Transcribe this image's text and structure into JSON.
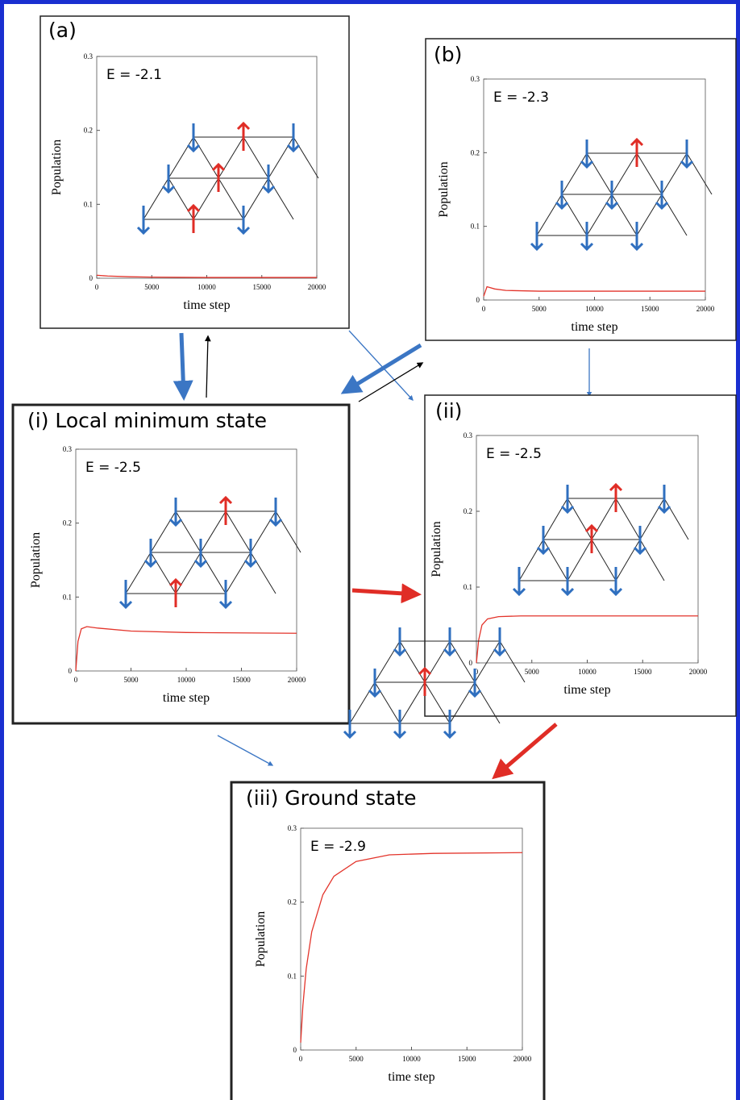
{
  "chart_data": [
    {
      "type": "line",
      "title": "(a)",
      "annotation": "E = -2.1",
      "xlabel": "time step",
      "ylabel": "Population",
      "x": [
        0,
        1000,
        3000,
        5000,
        10000,
        15000,
        20000
      ],
      "series": [
        {
          "color": "#e3342b",
          "values": [
            0.004,
            0.003,
            0.002,
            0.0015,
            0.001,
            0.001,
            0.001
          ]
        }
      ],
      "xlim": [
        0,
        20000
      ],
      "xticks": [
        0,
        5000,
        10000,
        15000,
        20000
      ],
      "ylim": [
        0,
        0.3
      ],
      "yticks": [
        0,
        0.1,
        0.2,
        0.3
      ]
    },
    {
      "type": "line",
      "title": "(b)",
      "annotation": "E = -2.3",
      "xlabel": "time step",
      "ylabel": "Population",
      "x": [
        0,
        300,
        1000,
        2000,
        5000,
        10000,
        20000
      ],
      "series": [
        {
          "color": "#e3342b",
          "values": [
            0.005,
            0.018,
            0.015,
            0.013,
            0.012,
            0.012,
            0.012
          ]
        }
      ],
      "xlim": [
        0,
        20000
      ],
      "xticks": [
        0,
        5000,
        10000,
        15000,
        20000
      ],
      "ylim": [
        0,
        0.3
      ],
      "yticks": [
        0,
        0.1,
        0.2,
        0.3
      ]
    },
    {
      "type": "line",
      "title": "(i) Local minimum state",
      "annotation": "E = -2.5",
      "xlabel": "time step",
      "ylabel": "Population",
      "x": [
        0,
        200,
        500,
        1000,
        2000,
        5000,
        10000,
        20000
      ],
      "series": [
        {
          "color": "#e3342b",
          "values": [
            0,
            0.04,
            0.057,
            0.06,
            0.058,
            0.054,
            0.052,
            0.051
          ]
        }
      ],
      "xlim": [
        0,
        20000
      ],
      "xticks": [
        0,
        5000,
        10000,
        15000,
        20000
      ],
      "ylim": [
        0,
        0.3
      ],
      "yticks": [
        0,
        0.1,
        0.2,
        0.3
      ]
    },
    {
      "type": "line",
      "title": "(ii)",
      "annotation": "E = -2.5",
      "xlabel": "time step",
      "ylabel": "Population",
      "x": [
        0,
        200,
        500,
        1000,
        2000,
        4000,
        20000
      ],
      "series": [
        {
          "color": "#e3342b",
          "values": [
            0,
            0.03,
            0.05,
            0.058,
            0.061,
            0.062,
            0.062
          ]
        }
      ],
      "xlim": [
        0,
        20000
      ],
      "xticks": [
        0,
        5000,
        10000,
        15000,
        20000
      ],
      "ylim": [
        0,
        0.3
      ],
      "yticks": [
        0,
        0.1,
        0.2,
        0.3
      ]
    },
    {
      "type": "line",
      "title": "(iii) Ground state",
      "annotation": "E = -2.9",
      "xlabel": "time step",
      "ylabel": "Population",
      "x": [
        0,
        200,
        500,
        1000,
        2000,
        3000,
        5000,
        8000,
        12000,
        20000
      ],
      "series": [
        {
          "color": "#e3342b",
          "values": [
            0.01,
            0.06,
            0.11,
            0.16,
            0.21,
            0.235,
            0.255,
            0.264,
            0.266,
            0.267
          ]
        }
      ],
      "xlim": [
        0,
        20000
      ],
      "xticks": [
        0,
        5000,
        10000,
        15000,
        20000
      ],
      "ylim": [
        0,
        0.3
      ],
      "yticks": [
        0,
        0.1,
        0.2,
        0.3
      ]
    }
  ]
}
